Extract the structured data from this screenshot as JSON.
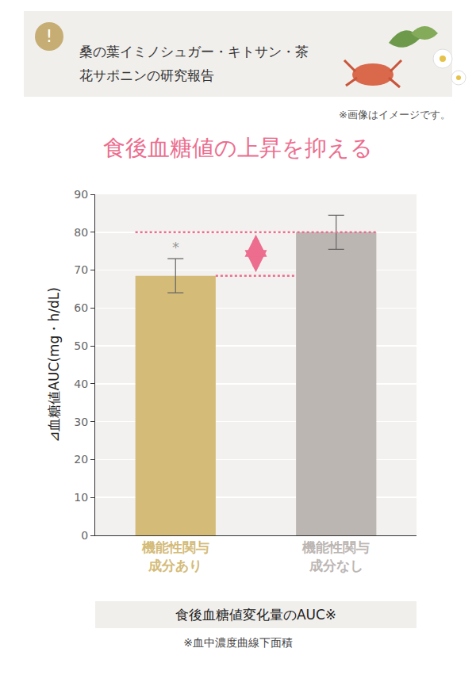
{
  "header": {
    "icon": "!",
    "title": "桑の葉イミノシュガー・キトサン・茶花サポニンの研究報告",
    "note": "※画像はイメージです。"
  },
  "chart_data": {
    "type": "bar",
    "title": "食後血糖値の上昇を抑える",
    "categories": [
      "機能性関与成分あり",
      "機能性関与成分なし"
    ],
    "values": [
      68.5,
      80
    ],
    "errors": [
      4.5,
      4.5
    ],
    "colors": [
      "#d4bb78",
      "#bcb6b3"
    ],
    "y_label": "⊿血糖値AUC(mg・h/dL)",
    "x_label": "食後血糖値変化量のAUC※",
    "footnote": "※血中濃度曲線下面積",
    "annotations": [
      {
        "category": "機能性関与成分あり",
        "text": "*"
      }
    ],
    "ylim": [
      0,
      90
    ],
    "yticks": [
      0,
      10,
      20,
      30,
      40,
      50,
      60,
      70,
      80,
      90
    ],
    "grid": true
  }
}
